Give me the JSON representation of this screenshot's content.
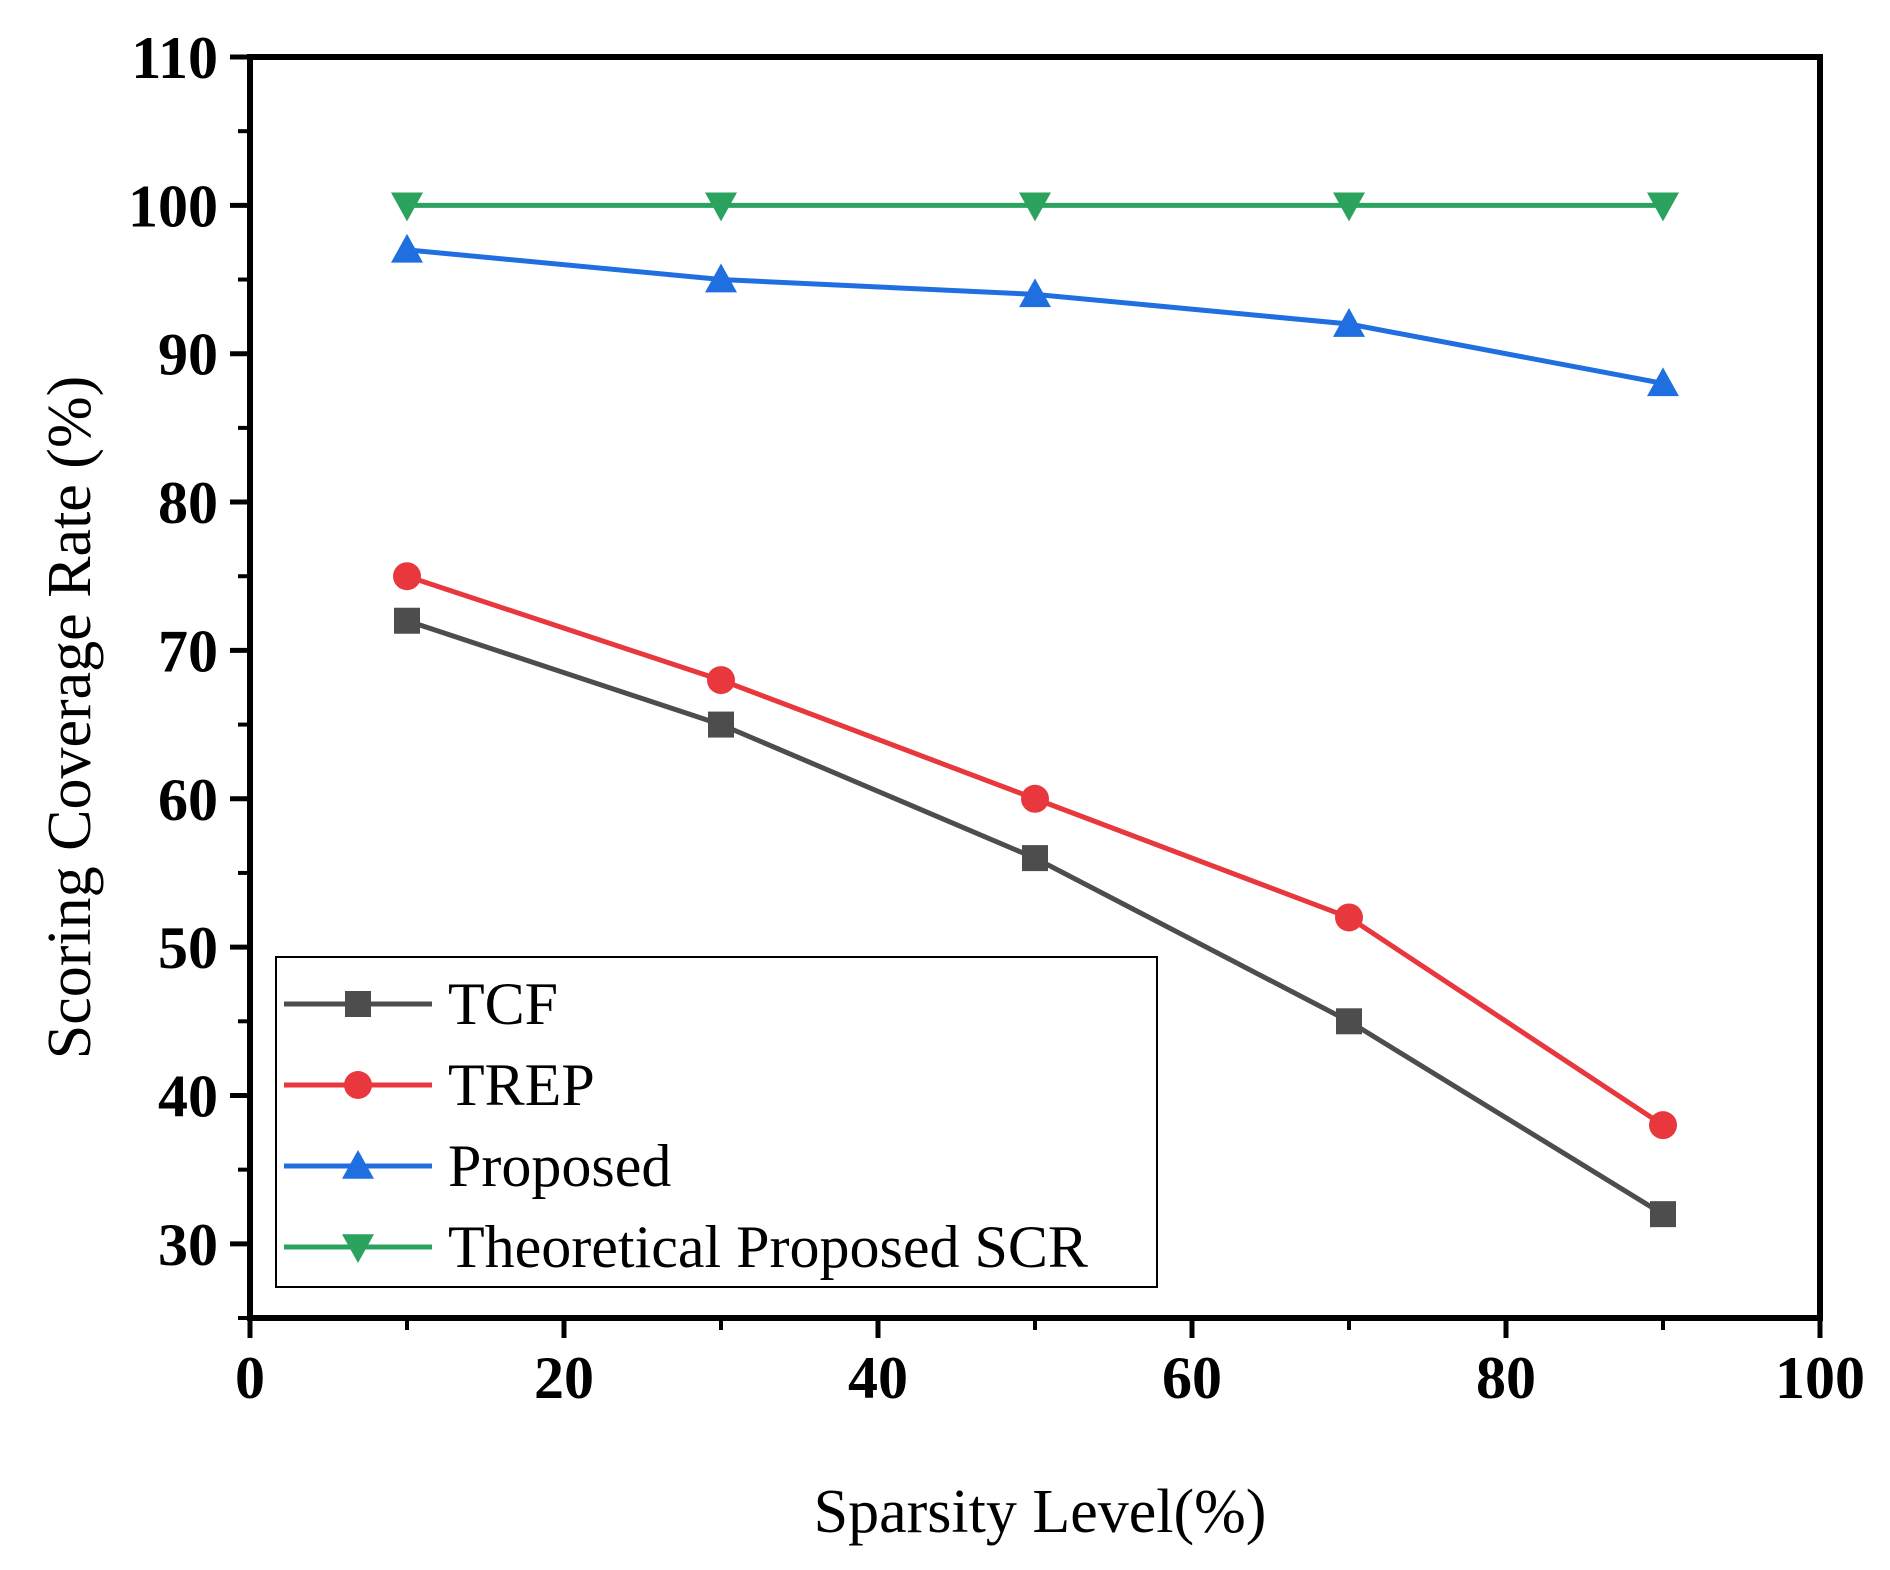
{
  "chart_data": {
    "type": "line",
    "title": "",
    "xlabel": "Sparsity Level(%)",
    "ylabel": "Scoring Coverage Rate (%)",
    "xlim": [
      0,
      100
    ],
    "ylim": [
      25,
      110
    ],
    "xticks": [
      0,
      20,
      40,
      60,
      80,
      100
    ],
    "yticks": [
      30,
      40,
      50,
      60,
      70,
      80,
      90,
      100,
      110
    ],
    "x": [
      10,
      30,
      50,
      70,
      90
    ],
    "grid": false,
    "legend_position": "bottom-left",
    "series": [
      {
        "name": "TCF",
        "values": [
          72,
          65,
          56,
          45,
          32
        ],
        "color": "#4d4d4d",
        "marker": "square"
      },
      {
        "name": "TREP",
        "values": [
          75,
          68,
          60,
          52,
          38
        ],
        "color": "#e8383d",
        "marker": "circle"
      },
      {
        "name": "Proposed",
        "values": [
          97,
          95,
          94,
          92,
          88
        ],
        "color": "#1f6fe0",
        "marker": "triangle-up"
      },
      {
        "name": "Theoretical Proposed SCR",
        "values": [
          100,
          100,
          100,
          100,
          100
        ],
        "color": "#2ca25f",
        "marker": "triangle-down"
      }
    ]
  }
}
